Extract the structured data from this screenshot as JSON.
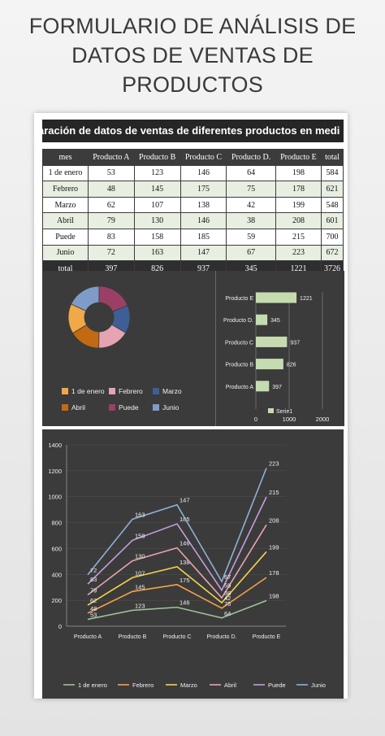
{
  "page": {
    "title_line1": "FORMULARIO DE ANÁLISIS DE",
    "title_line2": "DATOS DE VENTAS DE PRODUCTOS"
  },
  "sheet": {
    "banner": "aración de datos de ventas de diferentes productos en medi"
  },
  "table": {
    "headers": [
      "mes",
      "Producto A",
      "Producto B",
      "Producto C",
      "Producto D.",
      "Producto E",
      "total"
    ],
    "rows": [
      [
        "1 de enero",
        "53",
        "123",
        "146",
        "64",
        "198",
        "584"
      ],
      [
        "Febrero",
        "48",
        "145",
        "175",
        "75",
        "178",
        "621"
      ],
      [
        "Marzo",
        "62",
        "107",
        "138",
        "42",
        "199",
        "548"
      ],
      [
        "Abril",
        "79",
        "130",
        "146",
        "38",
        "208",
        "601"
      ],
      [
        "Puede",
        "83",
        "158",
        "185",
        "59",
        "215",
        "700"
      ],
      [
        "Junio",
        "72",
        "163",
        "147",
        "67",
        "223",
        "672"
      ]
    ],
    "total_row": [
      "total",
      "397",
      "826",
      "937",
      "345",
      "1221",
      "3726"
    ]
  },
  "colors": {
    "enero": "#f0a848",
    "febrero": "#e6a3b3",
    "marzo": "#3d5f96",
    "abril": "#c26a12",
    "puede": "#9b3f67",
    "junio": "#7f9cc8",
    "bar": "#c5dcb0",
    "line_enero": "#9fc197",
    "line_febrero": "#f8a24a",
    "line_marzo": "#f5d249",
    "line_abril": "#e8a3b0",
    "line_puede": "#c59ee0",
    "line_junio": "#8fb1d8"
  },
  "chart_data": [
    {
      "type": "pie",
      "subtype": "doughnut",
      "categories": [
        "1 de enero",
        "Febrero",
        "Marzo",
        "Abril",
        "Puede",
        "Junio"
      ],
      "values": [
        584,
        621,
        548,
        601,
        700,
        672
      ],
      "legend": "bottom",
      "slice_colors": [
        "#f0a848",
        "#e6a3b3",
        "#3d5f96",
        "#c26a12",
        "#9b3f67",
        "#7f9cc8"
      ]
    },
    {
      "type": "bar",
      "orientation": "horizontal",
      "categories": [
        "Producto A",
        "Producto B",
        "Producto C",
        "Producto D.",
        "Producto E"
      ],
      "series": [
        {
          "name": "Serie1",
          "values": [
            397,
            826,
            937,
            345,
            1221
          ]
        }
      ],
      "xlim": [
        0,
        2000
      ],
      "xticks": [
        "0",
        "1000",
        "2000"
      ],
      "legend": "bottom"
    },
    {
      "type": "line",
      "stacked": true,
      "categories": [
        "Producto A",
        "Producto B",
        "Producto C",
        "Producto D.",
        "Producto E"
      ],
      "series": [
        {
          "name": "1 de enero",
          "values": [
            53,
            123,
            146,
            64,
            198
          ]
        },
        {
          "name": "Febrero",
          "values": [
            48,
            145,
            175,
            75,
            178
          ]
        },
        {
          "name": "Marzo",
          "values": [
            62,
            107,
            138,
            42,
            199
          ]
        },
        {
          "name": "Abril",
          "values": [
            79,
            130,
            146,
            38,
            208
          ]
        },
        {
          "name": "Puede",
          "values": [
            83,
            158,
            185,
            59,
            215
          ]
        },
        {
          "name": "Junio",
          "values": [
            72,
            163,
            147,
            67,
            223
          ]
        }
      ],
      "ylim": [
        0,
        1400
      ],
      "yticks": [
        "0",
        "200",
        "400",
        "600",
        "800",
        "1000",
        "1200",
        "1400"
      ],
      "legend": "bottom"
    }
  ]
}
